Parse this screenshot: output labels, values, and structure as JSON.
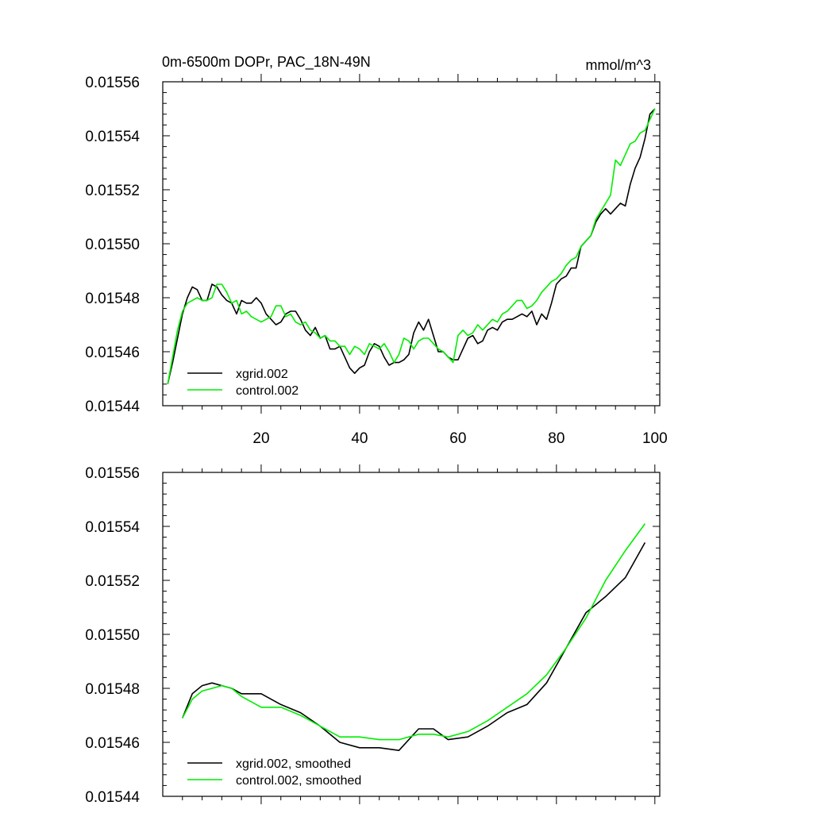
{
  "chart_data": [
    {
      "type": "line",
      "title": "0m-6500m DOPr, PAC_18N-49N",
      "units_label": "mmol/m^3",
      "xlim": [
        0,
        101
      ],
      "ylim": [
        0.01544,
        0.01556
      ],
      "xticks": [
        20,
        40,
        60,
        80,
        100
      ],
      "xtick_labels": [
        "20",
        "40",
        "60",
        "80",
        "100"
      ],
      "yticks": [
        0.01544,
        0.01546,
        0.01548,
        0.0155,
        0.01552,
        0.01554,
        0.01556
      ],
      "ytick_labels": [
        "0.01544",
        "0.01546",
        "0.01548",
        "0.01550",
        "0.01552",
        "0.01554",
        "0.01556"
      ],
      "legend_position": "bottom-left",
      "series": [
        {
          "name": "xgrid.002",
          "color": "#000000",
          "points": [
            [
              1,
              0.015448
            ],
            [
              2,
              0.015456
            ],
            [
              3,
              0.015465
            ],
            [
              4,
              0.015474
            ],
            [
              5,
              0.01548
            ],
            [
              6,
              0.015484
            ],
            [
              7,
              0.015483
            ],
            [
              8,
              0.015479
            ],
            [
              9,
              0.015479
            ],
            [
              10,
              0.015485
            ],
            [
              11,
              0.015484
            ],
            [
              12,
              0.015481
            ],
            [
              13,
              0.015479
            ],
            [
              14,
              0.015478
            ],
            [
              15,
              0.015474
            ],
            [
              16,
              0.015479
            ],
            [
              17,
              0.015478
            ],
            [
              18,
              0.015478
            ],
            [
              19,
              0.01548
            ],
            [
              20,
              0.015478
            ],
            [
              21,
              0.015474
            ],
            [
              22,
              0.015472
            ],
            [
              23,
              0.01547
            ],
            [
              24,
              0.015471
            ],
            [
              25,
              0.015474
            ],
            [
              26,
              0.015475
            ],
            [
              27,
              0.015475
            ],
            [
              28,
              0.015472
            ],
            [
              29,
              0.015468
            ],
            [
              30,
              0.015466
            ],
            [
              31,
              0.015469
            ],
            [
              32,
              0.015465
            ],
            [
              33,
              0.015466
            ],
            [
              34,
              0.015461
            ],
            [
              35,
              0.015461
            ],
            [
              36,
              0.015462
            ],
            [
              37,
              0.015458
            ],
            [
              38,
              0.015454
            ],
            [
              39,
              0.015452
            ],
            [
              40,
              0.015454
            ],
            [
              41,
              0.015455
            ],
            [
              42,
              0.01546
            ],
            [
              43,
              0.015463
            ],
            [
              44,
              0.015462
            ],
            [
              45,
              0.015458
            ],
            [
              46,
              0.015455
            ],
            [
              47,
              0.015456
            ],
            [
              48,
              0.015456
            ],
            [
              49,
              0.015457
            ],
            [
              50,
              0.015459
            ],
            [
              51,
              0.015467
            ],
            [
              52,
              0.015471
            ],
            [
              53,
              0.015468
            ],
            [
              54,
              0.015472
            ],
            [
              55,
              0.015466
            ],
            [
              56,
              0.01546
            ],
            [
              57,
              0.01546
            ],
            [
              58,
              0.015458
            ],
            [
              59,
              0.015457
            ],
            [
              60,
              0.015457
            ],
            [
              61,
              0.015461
            ],
            [
              62,
              0.015465
            ],
            [
              63,
              0.015466
            ],
            [
              64,
              0.015463
            ],
            [
              65,
              0.015464
            ],
            [
              66,
              0.015468
            ],
            [
              67,
              0.015469
            ],
            [
              68,
              0.015468
            ],
            [
              69,
              0.015471
            ],
            [
              70,
              0.015472
            ],
            [
              71,
              0.015472
            ],
            [
              72,
              0.015473
            ],
            [
              73,
              0.015474
            ],
            [
              74,
              0.015473
            ],
            [
              75,
              0.015475
            ],
            [
              76,
              0.01547
            ],
            [
              77,
              0.015474
            ],
            [
              78,
              0.015472
            ],
            [
              79,
              0.015478
            ],
            [
              80,
              0.015485
            ],
            [
              81,
              0.015487
            ],
            [
              82,
              0.015488
            ],
            [
              83,
              0.015491
            ],
            [
              84,
              0.015491
            ],
            [
              85,
              0.015499
            ],
            [
              86,
              0.015501
            ],
            [
              87,
              0.015503
            ],
            [
              88,
              0.015508
            ],
            [
              89,
              0.015511
            ],
            [
              90,
              0.015513
            ],
            [
              91,
              0.015511
            ],
            [
              92,
              0.015513
            ],
            [
              93,
              0.015515
            ],
            [
              94,
              0.015514
            ],
            [
              95,
              0.015522
            ],
            [
              96,
              0.015528
            ],
            [
              97,
              0.015532
            ],
            [
              98,
              0.015539
            ],
            [
              99,
              0.015548
            ],
            [
              100,
              0.01555
            ]
          ]
        },
        {
          "name": "control.002",
          "color": "#00ee00",
          "points": [
            [
              1,
              0.015448
            ],
            [
              2,
              0.015458
            ],
            [
              3,
              0.015468
            ],
            [
              4,
              0.015475
            ],
            [
              5,
              0.015478
            ],
            [
              6,
              0.015479
            ],
            [
              7,
              0.01548
            ],
            [
              8,
              0.015479
            ],
            [
              9,
              0.015479
            ],
            [
              10,
              0.01548
            ],
            [
              11,
              0.015485
            ],
            [
              12,
              0.015485
            ],
            [
              13,
              0.015482
            ],
            [
              14,
              0.015478
            ],
            [
              15,
              0.015479
            ],
            [
              16,
              0.015474
            ],
            [
              17,
              0.015475
            ],
            [
              18,
              0.015473
            ],
            [
              19,
              0.015472
            ],
            [
              20,
              0.015471
            ],
            [
              21,
              0.015472
            ],
            [
              22,
              0.015473
            ],
            [
              23,
              0.015477
            ],
            [
              24,
              0.015477
            ],
            [
              25,
              0.015473
            ],
            [
              26,
              0.015474
            ],
            [
              27,
              0.015471
            ],
            [
              28,
              0.01547
            ],
            [
              29,
              0.015471
            ],
            [
              30,
              0.015468
            ],
            [
              31,
              0.015467
            ],
            [
              32,
              0.015465
            ],
            [
              33,
              0.015466
            ],
            [
              34,
              0.015464
            ],
            [
              35,
              0.015464
            ],
            [
              36,
              0.015462
            ],
            [
              37,
              0.015462
            ],
            [
              38,
              0.015459
            ],
            [
              39,
              0.015462
            ],
            [
              40,
              0.015461
            ],
            [
              41,
              0.015459
            ],
            [
              42,
              0.015463
            ],
            [
              43,
              0.015462
            ],
            [
              44,
              0.015461
            ],
            [
              45,
              0.015463
            ],
            [
              46,
              0.01546
            ],
            [
              47,
              0.015456
            ],
            [
              48,
              0.015459
            ],
            [
              49,
              0.015465
            ],
            [
              50,
              0.015464
            ],
            [
              51,
              0.015461
            ],
            [
              52,
              0.015464
            ],
            [
              53,
              0.015465
            ],
            [
              54,
              0.015465
            ],
            [
              55,
              0.015463
            ],
            [
              56,
              0.015461
            ],
            [
              57,
              0.01546
            ],
            [
              58,
              0.015458
            ],
            [
              59,
              0.015456
            ],
            [
              60,
              0.015466
            ],
            [
              61,
              0.015468
            ],
            [
              62,
              0.015466
            ],
            [
              63,
              0.015467
            ],
            [
              64,
              0.01547
            ],
            [
              65,
              0.015468
            ],
            [
              66,
              0.01547
            ],
            [
              67,
              0.015472
            ],
            [
              68,
              0.015471
            ],
            [
              69,
              0.015474
            ],
            [
              70,
              0.015475
            ],
            [
              71,
              0.015477
            ],
            [
              72,
              0.015479
            ],
            [
              73,
              0.015479
            ],
            [
              74,
              0.015476
            ],
            [
              75,
              0.015477
            ],
            [
              76,
              0.015479
            ],
            [
              77,
              0.015482
            ],
            [
              78,
              0.015484
            ],
            [
              79,
              0.015486
            ],
            [
              80,
              0.015487
            ],
            [
              81,
              0.015489
            ],
            [
              82,
              0.015492
            ],
            [
              83,
              0.015494
            ],
            [
              84,
              0.015495
            ],
            [
              85,
              0.015499
            ],
            [
              86,
              0.015501
            ],
            [
              87,
              0.015503
            ],
            [
              88,
              0.015509
            ],
            [
              89,
              0.015512
            ],
            [
              90,
              0.015515
            ],
            [
              91,
              0.015518
            ],
            [
              92,
              0.015531
            ],
            [
              93,
              0.015529
            ],
            [
              94,
              0.015533
            ],
            [
              95,
              0.015537
            ],
            [
              96,
              0.015538
            ],
            [
              97,
              0.015541
            ],
            [
              98,
              0.015542
            ],
            [
              99,
              0.015546
            ],
            [
              100,
              0.01555
            ]
          ]
        }
      ]
    },
    {
      "type": "line",
      "title": "",
      "xlim": [
        0,
        101
      ],
      "ylim": [
        0.01544,
        0.01556
      ],
      "xticks": [
        20,
        40,
        60,
        80,
        100
      ],
      "xtick_labels": [],
      "yticks": [
        0.01544,
        0.01546,
        0.01548,
        0.0155,
        0.01552,
        0.01554,
        0.01556
      ],
      "ytick_labels": [
        "0.01544",
        "0.01546",
        "0.01548",
        "0.01550",
        "0.01552",
        "0.01554",
        "0.01556"
      ],
      "legend_position": "bottom-left",
      "series": [
        {
          "name": "xgrid.002, smoothed",
          "color": "#000000",
          "points": [
            [
              4,
              0.015469
            ],
            [
              6,
              0.015478
            ],
            [
              8,
              0.015481
            ],
            [
              10,
              0.015482
            ],
            [
              12,
              0.015481
            ],
            [
              14,
              0.01548
            ],
            [
              16,
              0.015478
            ],
            [
              20,
              0.015478
            ],
            [
              24,
              0.015474
            ],
            [
              28,
              0.015471
            ],
            [
              32,
              0.015466
            ],
            [
              36,
              0.01546
            ],
            [
              40,
              0.015458
            ],
            [
              44,
              0.015458
            ],
            [
              48,
              0.015457
            ],
            [
              52,
              0.015465
            ],
            [
              55,
              0.015465
            ],
            [
              58,
              0.015461
            ],
            [
              62,
              0.015462
            ],
            [
              66,
              0.015466
            ],
            [
              70,
              0.015471
            ],
            [
              74,
              0.015474
            ],
            [
              78,
              0.015482
            ],
            [
              82,
              0.015495
            ],
            [
              86,
              0.015508
            ],
            [
              90,
              0.015514
            ],
            [
              94,
              0.015521
            ],
            [
              98,
              0.015534
            ]
          ]
        },
        {
          "name": "control.002, smoothed",
          "color": "#00ee00",
          "points": [
            [
              4,
              0.015469
            ],
            [
              6,
              0.015476
            ],
            [
              8,
              0.015479
            ],
            [
              10,
              0.01548
            ],
            [
              12,
              0.015481
            ],
            [
              14,
              0.01548
            ],
            [
              16,
              0.015477
            ],
            [
              20,
              0.015473
            ],
            [
              24,
              0.015473
            ],
            [
              28,
              0.01547
            ],
            [
              32,
              0.015466
            ],
            [
              36,
              0.015462
            ],
            [
              40,
              0.015462
            ],
            [
              44,
              0.015461
            ],
            [
              48,
              0.015461
            ],
            [
              52,
              0.015463
            ],
            [
              55,
              0.015463
            ],
            [
              58,
              0.015462
            ],
            [
              62,
              0.015464
            ],
            [
              66,
              0.015468
            ],
            [
              70,
              0.015473
            ],
            [
              74,
              0.015478
            ],
            [
              78,
              0.015485
            ],
            [
              82,
              0.015495
            ],
            [
              86,
              0.015506
            ],
            [
              90,
              0.01552
            ],
            [
              94,
              0.015531
            ],
            [
              98,
              0.015541
            ]
          ]
        }
      ]
    }
  ]
}
